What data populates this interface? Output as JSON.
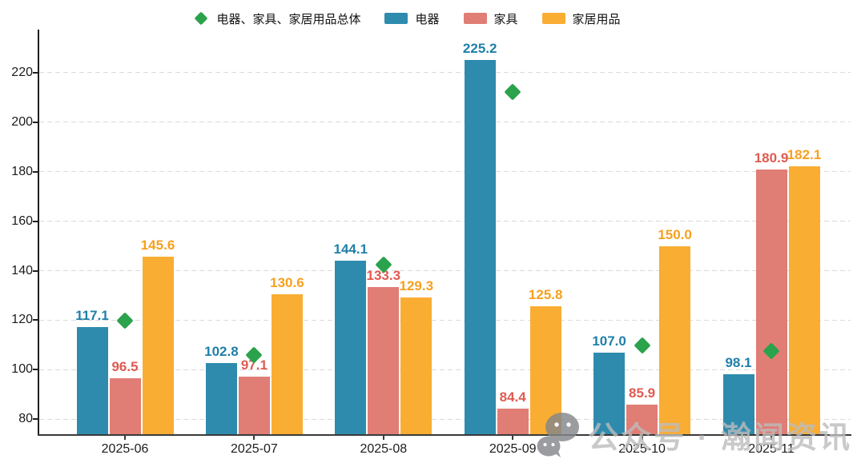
{
  "watermark": {
    "text": "公众号 · 瀚闻资讯",
    "icon": "wechat-icon",
    "color": "#bcbcbc"
  },
  "chart_data": {
    "type": "bar",
    "title": "",
    "xlabel": "",
    "ylabel": "",
    "categories": [
      "2025-06",
      "2025-07",
      "2025-08",
      "2025-09",
      "2025-10",
      "2025-11"
    ],
    "series": [
      {
        "name": "电器、家具、家居用品总体",
        "render": "diamond-scatter",
        "color": "#2ba24c",
        "label_color": "#2ba24c",
        "data_labels_shown": false,
        "values_estimated_from_markers": true,
        "values": [
          120.0,
          105.8,
          142.5,
          212.0,
          109.8,
          107.6
        ]
      },
      {
        "name": "电器",
        "render": "bar",
        "color": "#2e8bad",
        "label_color": "#1f7fa8",
        "data_labels_shown": true,
        "values": [
          117.1,
          102.8,
          144.1,
          225.2,
          107.0,
          98.1
        ]
      },
      {
        "name": "家具",
        "render": "bar",
        "color": "#e07d75",
        "label_color": "#e05a51",
        "data_labels_shown": true,
        "values": [
          96.5,
          97.1,
          133.3,
          84.4,
          85.9,
          180.9
        ]
      },
      {
        "name": "家居用品",
        "render": "bar",
        "color": "#f9ad33",
        "label_color": "#f7a01f",
        "data_labels_shown": true,
        "values": [
          145.6,
          130.6,
          129.3,
          125.8,
          150.0,
          182.1
        ]
      }
    ],
    "ylim": [
      74,
      237
    ],
    "yticks": [
      80,
      100,
      120,
      140,
      160,
      180,
      200,
      220
    ],
    "grid": true,
    "grid_style": "dashed",
    "legend_position": "top",
    "label_format": "1-decimal"
  }
}
